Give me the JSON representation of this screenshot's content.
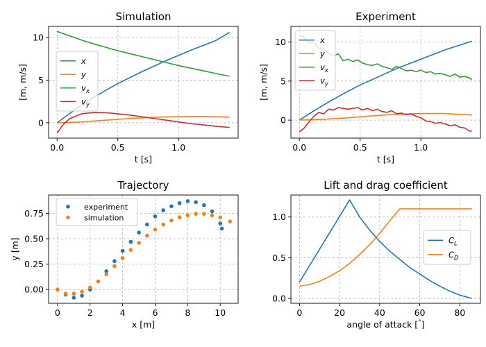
{
  "colors": {
    "blue": "#1f77b4",
    "orange": "#ff7f0e",
    "green": "#2ca02c",
    "red": "#d62728"
  },
  "chart_data": [
    {
      "type": "line",
      "title": "Simulation",
      "xlabel": "t [s]",
      "ylabel": "[m, m/s]",
      "xlim": [
        -0.07,
        1.49
      ],
      "ylim": [
        -1.8,
        11.3
      ],
      "xticks": [
        "0.0",
        "0.5",
        "1.0"
      ],
      "yticks": [
        "0",
        "5",
        "10"
      ],
      "grid": true,
      "legend": "center-left",
      "series": [
        {
          "name": "x",
          "x": [
            0,
            0.1,
            0.2,
            0.3,
            0.4,
            0.5,
            0.6,
            0.7,
            0.8,
            0.9,
            1.0,
            1.1,
            1.2,
            1.3,
            1.42
          ],
          "values": [
            0,
            1.05,
            2.05,
            2.95,
            3.8,
            4.6,
            5.3,
            6.0,
            6.65,
            7.3,
            7.9,
            8.5,
            9.05,
            9.6,
            10.6
          ]
        },
        {
          "name": "y",
          "x": [
            0,
            0.2,
            0.4,
            0.6,
            0.8,
            1.0,
            1.2,
            1.42
          ],
          "values": [
            0,
            0.1,
            0.3,
            0.5,
            0.65,
            0.72,
            0.75,
            0.67
          ]
        },
        {
          "name": "v_x",
          "x": [
            0,
            0.1,
            0.2,
            0.3,
            0.4,
            0.5,
            0.6,
            0.7,
            0.8,
            0.9,
            1.0,
            1.1,
            1.2,
            1.3,
            1.42
          ],
          "values": [
            10.7,
            10.2,
            9.7,
            9.25,
            8.85,
            8.45,
            8.1,
            7.75,
            7.4,
            7.05,
            6.7,
            6.4,
            6.1,
            5.8,
            5.45
          ]
        },
        {
          "name": "v_y",
          "x": [
            0,
            0.05,
            0.1,
            0.2,
            0.3,
            0.4,
            0.5,
            0.6,
            0.7,
            0.8,
            0.9,
            1.0,
            1.1,
            1.2,
            1.3,
            1.42
          ],
          "values": [
            -1.2,
            -0.2,
            0.45,
            1.05,
            1.2,
            1.18,
            1.05,
            0.9,
            0.7,
            0.5,
            0.3,
            0.1,
            -0.1,
            -0.25,
            -0.4,
            -0.55
          ]
        }
      ]
    },
    {
      "type": "line",
      "title": "Experiment",
      "xlabel": "t [s]",
      "ylabel": "[m, m/s]",
      "xlim": [
        -0.07,
        1.49
      ],
      "ylim": [
        -2.3,
        12.0
      ],
      "xticks": [
        "0.0",
        "0.5",
        "1.0"
      ],
      "yticks": [
        "0",
        "5",
        "10"
      ],
      "grid": true,
      "legend": "top-left",
      "series": [
        {
          "name": "x",
          "x": [
            0,
            0.1,
            0.2,
            0.3,
            0.4,
            0.5,
            0.6,
            0.7,
            0.8,
            0.9,
            1.0,
            1.1,
            1.2,
            1.3,
            1.42
          ],
          "values": [
            0,
            1.0,
            1.95,
            2.85,
            3.7,
            4.5,
            5.2,
            5.9,
            6.6,
            7.2,
            7.8,
            8.4,
            9.0,
            9.5,
            10.1
          ]
        },
        {
          "name": "y",
          "x": [
            0,
            0.2,
            0.4,
            0.6,
            0.8,
            1.0,
            1.2,
            1.42
          ],
          "values": [
            0,
            0.1,
            0.3,
            0.55,
            0.75,
            0.85,
            0.85,
            0.65
          ]
        },
        {
          "name": "v_x",
          "x": [
            0,
            0.04,
            0.08,
            0.12,
            0.16,
            0.2,
            0.24,
            0.28,
            0.32,
            0.36,
            0.4,
            0.44,
            0.48,
            0.52,
            0.56,
            0.6,
            0.64,
            0.68,
            0.72,
            0.76,
            0.8,
            0.84,
            0.88,
            0.92,
            0.96,
            1.0,
            1.04,
            1.08,
            1.12,
            1.16,
            1.2,
            1.24,
            1.28,
            1.32,
            1.36,
            1.4,
            1.42
          ],
          "values": [
            10.9,
            10.6,
            9.9,
            10.0,
            9.2,
            9.1,
            8.6,
            8.2,
            8.5,
            7.6,
            7.8,
            7.5,
            7.7,
            7.3,
            7.1,
            7.0,
            7.2,
            6.9,
            6.7,
            6.5,
            6.9,
            6.6,
            6.3,
            6.4,
            6.2,
            6.4,
            6.1,
            6.2,
            5.9,
            6.0,
            5.8,
            5.6,
            5.9,
            5.5,
            5.6,
            5.4,
            5.2
          ]
        },
        {
          "name": "v_y",
          "x": [
            0,
            0.04,
            0.08,
            0.12,
            0.16,
            0.2,
            0.24,
            0.28,
            0.32,
            0.36,
            0.4,
            0.44,
            0.48,
            0.52,
            0.56,
            0.6,
            0.64,
            0.68,
            0.72,
            0.76,
            0.8,
            0.84,
            0.88,
            0.92,
            0.96,
            1.0,
            1.04,
            1.08,
            1.12,
            1.16,
            1.2,
            1.24,
            1.28,
            1.32,
            1.36,
            1.4,
            1.42
          ],
          "values": [
            -1.5,
            -1.0,
            -0.2,
            0.5,
            1.0,
            0.8,
            1.4,
            1.3,
            1.6,
            1.5,
            1.4,
            1.5,
            1.6,
            1.3,
            1.5,
            1.2,
            1.4,
            1.1,
            1.0,
            1.2,
            0.8,
            0.9,
            0.7,
            0.8,
            0.5,
            0.3,
            -0.1,
            -0.2,
            -0.4,
            -0.3,
            -0.5,
            -0.7,
            -0.6,
            -0.9,
            -1.0,
            -1.4,
            -1.4
          ]
        }
      ]
    },
    {
      "type": "scatter",
      "title": "Trajectory",
      "xlabel": "x [m]",
      "ylabel": "y [m]",
      "xlim": [
        -0.55,
        11.1
      ],
      "ylim": [
        -0.135,
        0.93
      ],
      "xticks": [
        "0",
        "2",
        "4",
        "6",
        "8",
        "10"
      ],
      "yticks": [
        "0.00",
        "0.25",
        "0.50",
        "0.75"
      ],
      "grid": true,
      "legend": "top-left",
      "series": [
        {
          "name": "experiment",
          "x": [
            0,
            0.5,
            1.0,
            1.5,
            2.0,
            2.5,
            3.0,
            3.5,
            4.0,
            4.5,
            5.0,
            5.5,
            6.0,
            6.5,
            7.0,
            7.5,
            8.0,
            8.5,
            9.0,
            9.5,
            10.0,
            10.1
          ],
          "values": [
            0,
            -0.05,
            -0.08,
            -0.06,
            0.0,
            0.08,
            0.18,
            0.28,
            0.38,
            0.47,
            0.56,
            0.64,
            0.72,
            0.78,
            0.82,
            0.85,
            0.87,
            0.86,
            0.83,
            0.77,
            0.65,
            0.6
          ]
        },
        {
          "name": "simulation",
          "x": [
            0,
            0.5,
            1.0,
            1.5,
            2.0,
            2.5,
            3.0,
            3.5,
            4.0,
            4.5,
            5.0,
            5.5,
            6.0,
            6.5,
            7.0,
            7.5,
            8.0,
            8.5,
            9.0,
            9.5,
            10.0,
            10.6
          ],
          "values": [
            0,
            -0.04,
            -0.04,
            -0.02,
            0.02,
            0.08,
            0.15,
            0.23,
            0.31,
            0.39,
            0.46,
            0.53,
            0.59,
            0.64,
            0.68,
            0.71,
            0.73,
            0.745,
            0.745,
            0.73,
            0.71,
            0.67
          ]
        }
      ]
    },
    {
      "type": "line",
      "title": "Lift and drag coefficient",
      "xlabel": "angle of attack [",
      "xlabel_degree": "°",
      "xlabel_close": "]",
      "ylabel": "",
      "xlim": [
        -4.3,
        90.3
      ],
      "ylim": [
        -0.06,
        1.27
      ],
      "xticks": [
        "0",
        "20",
        "40",
        "60",
        "80"
      ],
      "yticks": [
        "0.0",
        "0.5",
        "1.0"
      ],
      "grid": true,
      "legend": "center-right",
      "series": [
        {
          "name": "C_L",
          "x": [
            0,
            25,
            30,
            35,
            40,
            45,
            50,
            55,
            60,
            65,
            70,
            75,
            80,
            86
          ],
          "values": [
            0.2,
            1.21,
            1.0,
            0.84,
            0.7,
            0.58,
            0.48,
            0.38,
            0.3,
            0.22,
            0.15,
            0.09,
            0.04,
            0.0
          ]
        },
        {
          "name": "C_D",
          "x": [
            0,
            5,
            10,
            15,
            20,
            25,
            30,
            35,
            40,
            45,
            50,
            55,
            60,
            70,
            80,
            86
          ],
          "values": [
            0.15,
            0.17,
            0.21,
            0.27,
            0.34,
            0.43,
            0.54,
            0.66,
            0.8,
            0.95,
            1.1,
            1.1,
            1.1,
            1.1,
            1.1,
            1.1
          ]
        }
      ]
    }
  ]
}
